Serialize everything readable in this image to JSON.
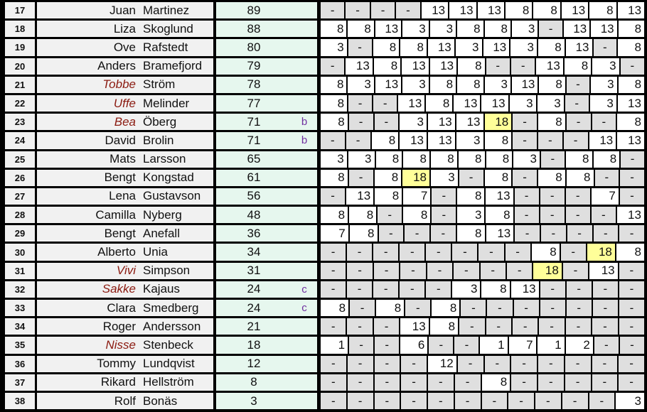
{
  "colors": {
    "cell_grey": "#F1F1F1",
    "dash_grey": "#DFDFDF",
    "score_green": "#E6F7EE",
    "highlight_yellow": "#FFFF99",
    "note_purple": "#7030A0",
    "nickname_red": "#8B1A10",
    "grid_black": "#000000"
  },
  "table": {
    "value_columns": 12,
    "dash_symbol": "-",
    "rows": [
      {
        "rank": "17",
        "first": "Juan",
        "last": "Martinez",
        "nick": false,
        "score": "89",
        "note": "",
        "values": [
          "-",
          "-",
          "-",
          "-",
          "13",
          "13",
          "13",
          "8",
          "8",
          "13",
          "8",
          "13"
        ],
        "yellow": []
      },
      {
        "rank": "18",
        "first": "Liza",
        "last": "Skoglund",
        "nick": false,
        "score": "88",
        "note": "",
        "values": [
          "8",
          "8",
          "13",
          "3",
          "3",
          "8",
          "8",
          "3",
          "-",
          "13",
          "13",
          "8"
        ],
        "yellow": []
      },
      {
        "rank": "19",
        "first": "Ove",
        "last": "Rafstedt",
        "nick": false,
        "score": "80",
        "note": "",
        "values": [
          "3",
          "-",
          "8",
          "8",
          "13",
          "3",
          "13",
          "3",
          "8",
          "13",
          "-",
          "8"
        ],
        "yellow": []
      },
      {
        "rank": "20",
        "first": "Anders",
        "last": "Bramefjord",
        "nick": false,
        "score": "79",
        "note": "",
        "values": [
          "-",
          "13",
          "8",
          "13",
          "13",
          "8",
          "-",
          "-",
          "13",
          "8",
          "3",
          "-"
        ],
        "yellow": []
      },
      {
        "rank": "21",
        "first": "Tobbe",
        "last": "Ström",
        "nick": true,
        "score": "78",
        "note": "",
        "values": [
          "8",
          "3",
          "13",
          "3",
          "8",
          "8",
          "3",
          "13",
          "8",
          "-",
          "3",
          "8"
        ],
        "yellow": []
      },
      {
        "rank": "22",
        "first": "Uffe",
        "last": "Melinder",
        "nick": true,
        "score": "77",
        "note": "",
        "values": [
          "8",
          "-",
          "-",
          "13",
          "8",
          "13",
          "13",
          "3",
          "3",
          "-",
          "3",
          "13"
        ],
        "yellow": []
      },
      {
        "rank": "23",
        "first": "Bea",
        "last": "Öberg",
        "nick": true,
        "score": "71",
        "note": "b",
        "values": [
          "8",
          "-",
          "-",
          "3",
          "13",
          "13",
          "18",
          "-",
          "8",
          "-",
          "-",
          "8"
        ],
        "yellow": [
          6
        ]
      },
      {
        "rank": "24",
        "first": "David",
        "last": "Brolin",
        "nick": false,
        "score": "71",
        "note": "b",
        "values": [
          "-",
          "-",
          "8",
          "13",
          "13",
          "3",
          "8",
          "-",
          "-",
          "-",
          "13",
          "13"
        ],
        "yellow": []
      },
      {
        "rank": "25",
        "first": "Mats",
        "last": "Larsson",
        "nick": false,
        "score": "65",
        "note": "",
        "values": [
          "3",
          "3",
          "8",
          "8",
          "8",
          "8",
          "8",
          "3",
          "-",
          "8",
          "8",
          "-"
        ],
        "yellow": []
      },
      {
        "rank": "26",
        "first": "Bengt",
        "last": "Kongstad",
        "nick": false,
        "score": "61",
        "note": "",
        "values": [
          "8",
          "-",
          "8",
          "18",
          "3",
          "-",
          "8",
          "-",
          "8",
          "8",
          "-",
          "-"
        ],
        "yellow": [
          3
        ]
      },
      {
        "rank": "27",
        "first": "Lena",
        "last": "Gustavson",
        "nick": false,
        "score": "56",
        "note": "",
        "values": [
          "-",
          "13",
          "8",
          "7",
          "-",
          "8",
          "13",
          "-",
          "-",
          "-",
          "7",
          "-"
        ],
        "yellow": []
      },
      {
        "rank": "28",
        "first": "Camilla",
        "last": "Nyberg",
        "nick": false,
        "score": "48",
        "note": "",
        "values": [
          "8",
          "8",
          "-",
          "8",
          "-",
          "3",
          "8",
          "-",
          "-",
          "-",
          "-",
          "13"
        ],
        "yellow": []
      },
      {
        "rank": "29",
        "first": "Bengt",
        "last": "Anefall",
        "nick": false,
        "score": "36",
        "note": "",
        "values": [
          "7",
          "8",
          "-",
          "-",
          "-",
          "8",
          "13",
          "-",
          "-",
          "-",
          "-",
          "-"
        ],
        "yellow": []
      },
      {
        "rank": "30",
        "first": "Alberto",
        "last": "Unia",
        "nick": false,
        "score": "34",
        "note": "",
        "values": [
          "-",
          "-",
          "-",
          "-",
          "-",
          "-",
          "-",
          "-",
          "8",
          "-",
          "18",
          "8"
        ],
        "yellow": [
          10
        ]
      },
      {
        "rank": "31",
        "first": "Vivi",
        "last": "Simpson",
        "nick": true,
        "score": "31",
        "note": "",
        "values": [
          "-",
          "-",
          "-",
          "-",
          "-",
          "-",
          "-",
          "-",
          "18",
          "-",
          "13",
          "-"
        ],
        "yellow": [
          8
        ]
      },
      {
        "rank": "32",
        "first": "Sakke",
        "last": "Kajaus",
        "nick": true,
        "score": "24",
        "note": "c",
        "values": [
          "-",
          "-",
          "-",
          "-",
          "-",
          "3",
          "8",
          "13",
          "-",
          "-",
          "-",
          "-"
        ],
        "yellow": []
      },
      {
        "rank": "33",
        "first": "Clara",
        "last": "Smedberg",
        "nick": false,
        "score": "24",
        "note": "c",
        "values": [
          "8",
          "-",
          "8",
          "-",
          "8",
          "-",
          "-",
          "-",
          "-",
          "-",
          "-",
          "-"
        ],
        "yellow": []
      },
      {
        "rank": "34",
        "first": "Roger",
        "last": "Andersson",
        "nick": false,
        "score": "21",
        "note": "",
        "values": [
          "-",
          "-",
          "-",
          "13",
          "8",
          "-",
          "-",
          "-",
          "-",
          "-",
          "-",
          "-"
        ],
        "yellow": []
      },
      {
        "rank": "35",
        "first": "Nisse",
        "last": "Stenbeck",
        "nick": true,
        "score": "18",
        "note": "",
        "values": [
          "1",
          "-",
          "-",
          "6",
          "-",
          "-",
          "1",
          "7",
          "1",
          "2",
          "-",
          "-"
        ],
        "yellow": []
      },
      {
        "rank": "36",
        "first": "Tommy",
        "last": "Lundqvist",
        "nick": false,
        "score": "12",
        "note": "",
        "values": [
          "-",
          "-",
          "-",
          "-",
          "12",
          "-",
          "-",
          "-",
          "-",
          "-",
          "-",
          "-"
        ],
        "yellow": []
      },
      {
        "rank": "37",
        "first": "Rikard",
        "last": "Hellström",
        "nick": false,
        "score": "8",
        "note": "",
        "values": [
          "-",
          "-",
          "-",
          "-",
          "-",
          "-",
          "8",
          "-",
          "-",
          "-",
          "-",
          "-"
        ],
        "yellow": []
      },
      {
        "rank": "38",
        "first": "Rolf",
        "last": "Bonäs",
        "nick": false,
        "score": "3",
        "note": "",
        "values": [
          "-",
          "-",
          "-",
          "-",
          "-",
          "-",
          "-",
          "-",
          "-",
          "-",
          "-",
          "3"
        ],
        "yellow": []
      }
    ]
  }
}
